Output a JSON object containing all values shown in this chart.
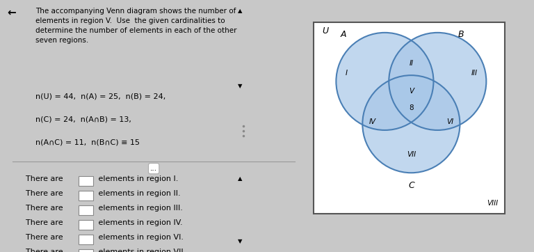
{
  "title_text": "The accompanying Venn diagram shows the number of\nelements in region V.  Use  the given cardinalities to\ndetermine the number of elements in each of the other\nseven regions.",
  "given_lines": [
    "n(U) = 44,  n(A) = 25,  n(B) = 24,",
    "n(C) = 24,  n(A∩B) = 13,",
    "n(A∩C) = 11,  n(B∩C) ≡ 15"
  ],
  "answer_lines": [
    [
      "There are ",
      " elements in region I."
    ],
    [
      "There are ",
      " elements in region II."
    ],
    [
      "There are ",
      " elements in region III."
    ],
    [
      "There are ",
      " elements in region IV."
    ],
    [
      "There are ",
      " elements in region VI."
    ],
    [
      "There are ",
      " elements in region VII."
    ]
  ],
  "venn_region_V": 8,
  "bg_color": "#c8c8c8",
  "panel_bg": "#c8c8c8",
  "venn_box_bg": "#ffffff",
  "circle_color": "#4a7fb5",
  "circle_fill_light": "#a8c8e8",
  "circle_fill_dark": "#6090c0",
  "circle_alpha": 0.5,
  "label_U": "U",
  "label_A": "A",
  "label_B": "B",
  "label_C": "C"
}
